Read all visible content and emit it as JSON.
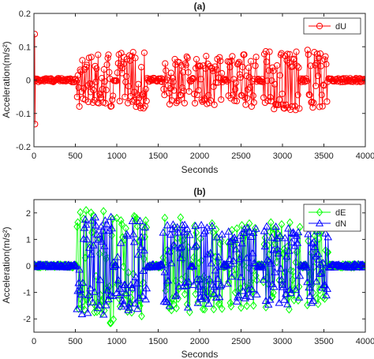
{
  "chart_data": [
    {
      "type": "line",
      "title": "(a)",
      "xlabel": "Seconds",
      "ylabel": "Acceleration(m/s²)",
      "xlim": [
        0,
        4000
      ],
      "ylim": [
        -0.2,
        0.2
      ],
      "xticks": [
        "0",
        "500",
        "1000",
        "1500",
        "2000",
        "2500",
        "3000",
        "3500",
        "4000"
      ],
      "yticks": [
        "-0.2",
        "-0.1",
        "0",
        "0.1",
        "0.2"
      ],
      "grid": false,
      "legend_position": "top-right",
      "series": [
        {
          "name": "dU",
          "color": "#ff0000",
          "marker": "circle",
          "quiet_amplitude": 0.006,
          "spikes": [
            {
              "x": 10,
              "y": 0.138
            },
            {
              "x": 12,
              "y": -0.132
            }
          ],
          "segments": [
            {
              "x_start": 520,
              "x_end": 960,
              "amplitude": 0.08
            },
            {
              "x_start": 1000,
              "x_end": 1360,
              "amplitude": 0.085
            },
            {
              "x_start": 1560,
              "x_end": 1880,
              "amplitude": 0.075
            },
            {
              "x_start": 1930,
              "x_end": 2270,
              "amplitude": 0.075
            },
            {
              "x_start": 2340,
              "x_end": 2690,
              "amplitude": 0.08
            },
            {
              "x_start": 2770,
              "x_end": 3210,
              "amplitude": 0.09
            },
            {
              "x_start": 3300,
              "x_end": 3550,
              "amplitude": 0.095
            }
          ]
        }
      ]
    },
    {
      "type": "line",
      "title": "(b)",
      "xlabel": "Seconds",
      "ylabel": "Acceleration(m/s²)",
      "xlim": [
        0,
        4000
      ],
      "ylim": [
        -2.5,
        2.5
      ],
      "xticks": [
        "0",
        "500",
        "1000",
        "1500",
        "2000",
        "2500",
        "3000",
        "3500",
        "4000"
      ],
      "yticks": [
        "-2",
        "-1",
        "0",
        "1",
        "2"
      ],
      "grid": false,
      "legend_position": "top-right",
      "series": [
        {
          "name": "dE",
          "color": "#00ff00",
          "marker": "diamond",
          "quiet_amplitude": 0.05,
          "segments": [
            {
              "x_start": 520,
              "x_end": 960,
              "amplitude": 2.15
            },
            {
              "x_start": 1000,
              "x_end": 1360,
              "amplitude": 1.9
            },
            {
              "x_start": 1560,
              "x_end": 1880,
              "amplitude": 1.85
            },
            {
              "x_start": 1930,
              "x_end": 2270,
              "amplitude": 1.75
            },
            {
              "x_start": 2340,
              "x_end": 2690,
              "amplitude": 1.6
            },
            {
              "x_start": 2770,
              "x_end": 3210,
              "amplitude": 1.65
            },
            {
              "x_start": 3300,
              "x_end": 3550,
              "amplitude": 1.55
            }
          ]
        },
        {
          "name": "dN",
          "color": "#0000ff",
          "marker": "triangle",
          "quiet_amplitude": 0.06,
          "segments": [
            {
              "x_start": 520,
              "x_end": 960,
              "amplitude": 1.85
            },
            {
              "x_start": 1000,
              "x_end": 1360,
              "amplitude": 1.7
            },
            {
              "x_start": 1560,
              "x_end": 1880,
              "amplitude": 1.6
            },
            {
              "x_start": 1930,
              "x_end": 2270,
              "amplitude": 1.55
            },
            {
              "x_start": 2340,
              "x_end": 2690,
              "amplitude": 1.45
            },
            {
              "x_start": 2770,
              "x_end": 3210,
              "amplitude": 1.5
            },
            {
              "x_start": 3300,
              "x_end": 3550,
              "amplitude": 1.45
            }
          ]
        }
      ]
    }
  ]
}
